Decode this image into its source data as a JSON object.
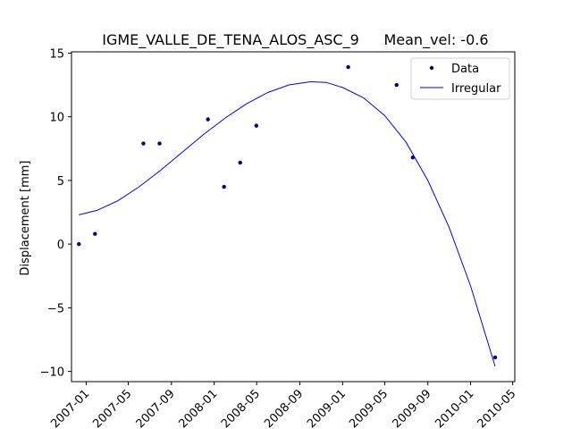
{
  "chart_data": {
    "type": "line",
    "title": "IGME_VALLE_DE_TENA_ALOS_ASC_9",
    "title_suffix": "Mean_vel: -0.6",
    "ylabel": "Displacement [mm]",
    "xlabel": "",
    "ylim": [
      -10.8,
      15.1
    ],
    "xlim": [
      "2006-11-20",
      "2010-05-07"
    ],
    "yticks": [
      -10,
      -5,
      0,
      5,
      10,
      15
    ],
    "ytick_labels": [
      "−10",
      "−5",
      "0",
      "5",
      "10",
      "15"
    ],
    "xticks": [
      "2007-01-01",
      "2007-05-01",
      "2007-09-01",
      "2008-01-01",
      "2008-05-01",
      "2008-09-01",
      "2009-01-01",
      "2009-05-01",
      "2009-09-01",
      "2010-01-01",
      "2010-05-01"
    ],
    "xtick_labels": [
      "2007-01",
      "2007-05",
      "2007-09",
      "2008-01",
      "2008-05",
      "2008-09",
      "2009-01",
      "2009-05",
      "2009-09",
      "2010-01",
      "2010-05"
    ],
    "legend_position": "top-right",
    "grid": false,
    "series": [
      {
        "name": "Data",
        "kind": "scatter",
        "color": "#00008b",
        "x": [
          "2006-12-11",
          "2007-01-26",
          "2007-06-13",
          "2007-07-29",
          "2007-12-14",
          "2008-01-29",
          "2008-03-15",
          "2008-04-30",
          "2009-01-17",
          "2009-06-04",
          "2009-07-20",
          "2010-03-12"
        ],
        "y": [
          0.0,
          0.8,
          7.9,
          7.9,
          9.8,
          4.5,
          6.4,
          9.3,
          13.9,
          12.5,
          6.8,
          -8.9
        ]
      },
      {
        "name": "Irregular",
        "kind": "line",
        "color": "#0000ff",
        "x": [
          "2006-12-11",
          "2007-02-01",
          "2007-04-01",
          "2007-06-01",
          "2007-08-01",
          "2007-10-01",
          "2007-12-01",
          "2008-02-01",
          "2008-04-01",
          "2008-06-01",
          "2008-08-01",
          "2008-10-01",
          "2008-11-15",
          "2009-01-01",
          "2009-03-01",
          "2009-05-01",
          "2009-07-01",
          "2009-09-01",
          "2009-11-01",
          "2010-01-01",
          "2010-03-12"
        ],
        "y": [
          2.3,
          2.65,
          3.4,
          4.5,
          5.8,
          7.2,
          8.6,
          9.9,
          11.0,
          11.9,
          12.5,
          12.75,
          12.7,
          12.3,
          11.5,
          10.1,
          8.0,
          5.0,
          1.3,
          -3.3,
          -9.6
        ]
      }
    ]
  }
}
